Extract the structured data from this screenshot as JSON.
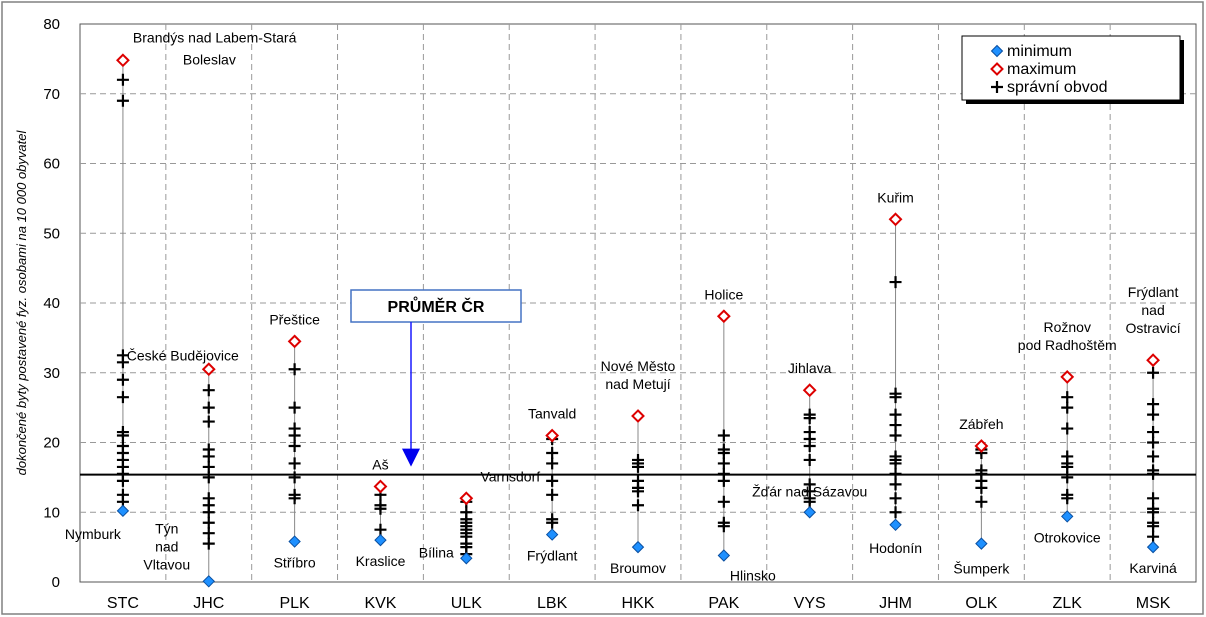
{
  "chart_data": {
    "type": "scatter",
    "ylabel": "dokončené byty postavené fyz. osobami na 10 000 obyvatel",
    "ylim": [
      0,
      80
    ],
    "yticks": [
      0,
      10,
      20,
      30,
      40,
      50,
      60,
      70,
      80
    ],
    "grid": true,
    "legend_position": "top-right",
    "categories": [
      "STC",
      "JHC",
      "PLK",
      "KVK",
      "ULK",
      "LBK",
      "HKK",
      "PAK",
      "VYS",
      "JHM",
      "OLK",
      "ZLK",
      "MSK"
    ],
    "legend": [
      {
        "key": "minimum",
        "label": "minimum",
        "color": "#1e90ff"
      },
      {
        "key": "maximum",
        "label": "maximum",
        "color": "#dd0000"
      },
      {
        "key": "obvod",
        "label": "správní obvod",
        "color": "#000000"
      }
    ],
    "reference_line": {
      "label": "PRŮMĚR ČR",
      "value": 15.4
    },
    "regions": [
      {
        "code": "STC",
        "min": 10.2,
        "max": 74.8,
        "min_label": "Nymburk",
        "max_label": [
          "Brandýs nad Labem-Stará",
          "Boleslav"
        ],
        "obvody": [
          72,
          69,
          32.5,
          31.5,
          29,
          26.5,
          21.5,
          21,
          19.5,
          18.5,
          17.5,
          16.5,
          15.5,
          14.5,
          12.5,
          11.5
        ]
      },
      {
        "code": "JHC",
        "min": 0.1,
        "max": 30.5,
        "min_label": [
          "Týn",
          "nad",
          "Vltavou"
        ],
        "max_label": [
          "České Budějovice"
        ],
        "obvody": [
          27.5,
          25,
          23,
          19,
          18,
          16.5,
          15,
          12,
          11,
          10,
          8.5,
          7,
          5.5
        ]
      },
      {
        "code": "PLK",
        "min": 5.8,
        "max": 34.5,
        "min_label": "Stříbro",
        "max_label": [
          "Přeštice"
        ],
        "obvody": [
          30.5,
          25,
          22,
          21,
          19.5,
          17,
          15,
          12.5,
          12
        ]
      },
      {
        "code": "KVK",
        "min": 6.0,
        "max": 13.7,
        "min_label": "Kraslice",
        "max_label": [
          "Aš"
        ],
        "obvody": [
          12.5,
          11,
          10.5,
          7.5
        ]
      },
      {
        "code": "ULK",
        "min": 3.4,
        "max": 12.0,
        "min_label": "Bílina",
        "max_label": [
          "Varnsdorf"
        ],
        "obvody": [
          11.5,
          10,
          9,
          8.5,
          8,
          7.5,
          7,
          6.5,
          5.5,
          5,
          4
        ]
      },
      {
        "code": "LBK",
        "min": 6.8,
        "max": 21.0,
        "min_label": "Frýdlant",
        "max_label": [
          "Tanvald"
        ],
        "obvody": [
          20.5,
          18.5,
          17,
          14.5,
          12.5,
          9,
          8.5
        ]
      },
      {
        "code": "HKK",
        "min": 5.0,
        "max": 23.8,
        "min_label": "Broumov",
        "max_label": [
          "Nové Město",
          "nad Metují"
        ],
        "obvody": [
          17.5,
          17,
          16.5,
          14.5,
          13.5,
          13,
          11
        ]
      },
      {
        "code": "PAK",
        "min": 3.8,
        "max": 38.1,
        "min_label": "Hlinsko",
        "max_label": [
          "Holice"
        ],
        "obvody": [
          21,
          19,
          18.5,
          17,
          15.5,
          14.5,
          11.5,
          8.5,
          8
        ]
      },
      {
        "code": "VYS",
        "min": 10.0,
        "max": 27.5,
        "min_label": "Žďár nad Sázavou",
        "max_label": [
          "Jihlava"
        ],
        "obvody": [
          24,
          23.5,
          21.5,
          20.5,
          19.5,
          17.5,
          14,
          13,
          12,
          11.5
        ]
      },
      {
        "code": "JHM",
        "min": 8.2,
        "max": 52.0,
        "min_label": "Hodonín",
        "max_label": [
          "Kuřim"
        ],
        "obvody": [
          43,
          27,
          26.5,
          24,
          22.5,
          21,
          18,
          17.5,
          17,
          15.5,
          14,
          12,
          10
        ]
      },
      {
        "code": "OLK",
        "min": 5.5,
        "max": 19.5,
        "min_label": "Šumperk",
        "max_label": [
          "Zábřeh"
        ],
        "obvody": [
          19,
          18.5,
          16,
          15.5,
          14.5,
          13.5,
          11.5
        ]
      },
      {
        "code": "ZLK",
        "min": 9.4,
        "max": 29.4,
        "min_label": "Otrokovice",
        "max_label": [
          "Rožnov",
          "pod Radhoštěm"
        ],
        "obvody": [
          26.5,
          25,
          22,
          18,
          17,
          16.5,
          15,
          12.5,
          12
        ]
      },
      {
        "code": "MSK",
        "min": 5.0,
        "max": 31.8,
        "min_label": "Karviná",
        "max_label": [
          "Frýdlant",
          "nad",
          "Ostravicí"
        ],
        "obvody": [
          30,
          25.5,
          24,
          21.5,
          20,
          18,
          16,
          15.5,
          12,
          10.5,
          10,
          8.5,
          8,
          6.5
        ]
      }
    ]
  }
}
